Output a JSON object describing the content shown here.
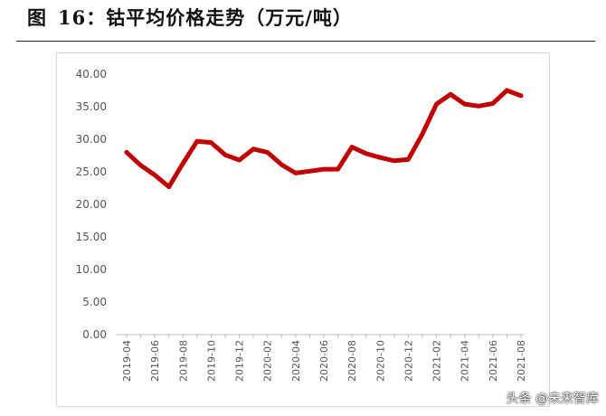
{
  "figure": {
    "label": "图",
    "number": "16：",
    "title": "钴平均价格走势（万元/吨）"
  },
  "watermark": "头条 @未来智库",
  "chart_data": {
    "type": "line",
    "title": "钴平均价格走势（万元/吨）",
    "xlabel": "",
    "ylabel": "",
    "ylim": [
      0,
      40
    ],
    "yticks": [
      "0.00",
      "5.00",
      "10.00",
      "15.00",
      "20.00",
      "25.00",
      "30.00",
      "35.00",
      "40.00"
    ],
    "x": [
      "2019-04",
      "2019-05",
      "2019-06",
      "2019-07",
      "2019-08",
      "2019-09",
      "2019-10",
      "2019-11",
      "2019-12",
      "2020-01",
      "2020-02",
      "2020-03",
      "2020-04",
      "2020-05",
      "2020-06",
      "2020-07",
      "2020-08",
      "2020-09",
      "2020-10",
      "2020-11",
      "2020-12",
      "2021-01",
      "2021-02",
      "2021-03",
      "2021-04",
      "2021-05",
      "2021-06",
      "2021-07",
      "2021-08"
    ],
    "xtick_labels": [
      "2019-04",
      "2019-06",
      "2019-08",
      "2019-10",
      "2019-12",
      "2020-02",
      "2020-04",
      "2020-06",
      "2020-08",
      "2020-10",
      "2020-12",
      "2021-02",
      "2021-04",
      "2021-06",
      "2021-08"
    ],
    "series": [
      {
        "color": "#c00000",
        "values": [
          28.0,
          26.0,
          24.5,
          22.7,
          26.3,
          29.7,
          29.5,
          27.6,
          26.8,
          28.5,
          28.0,
          26.1,
          24.8,
          25.1,
          25.4,
          25.4,
          28.8,
          27.8,
          27.2,
          26.7,
          26.9,
          30.8,
          35.4,
          36.9,
          35.4,
          35.1,
          35.5,
          37.5,
          36.7
        ]
      }
    ],
    "grid": false,
    "legend": "none"
  }
}
